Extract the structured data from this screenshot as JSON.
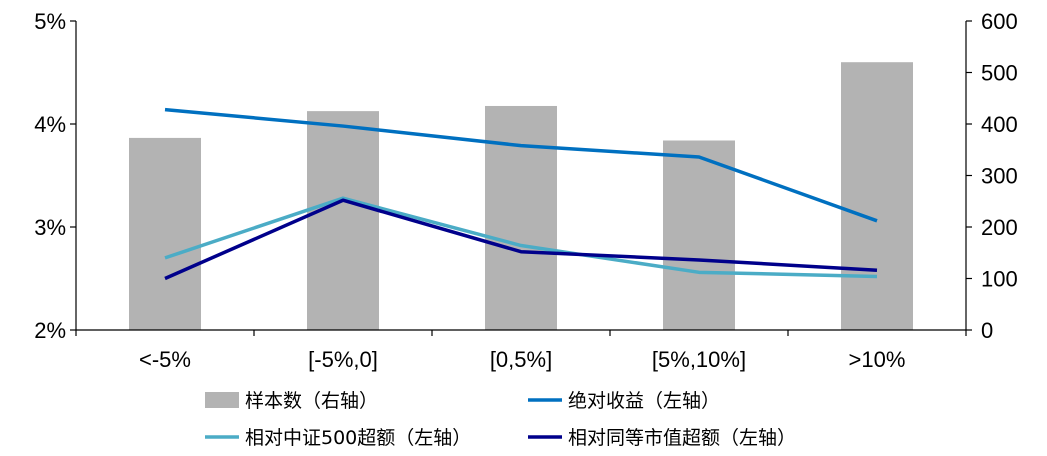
{
  "chart_data": {
    "type": "bar",
    "categories": [
      "<-5%",
      "[-5%,0]",
      "[0,5%]",
      "[5%,10%]",
      ">10%"
    ],
    "left_axis": {
      "ylim": [
        0.02,
        0.05
      ],
      "ticks": [
        "2%",
        "3%",
        "4%",
        "5%"
      ]
    },
    "right_axis": {
      "ylim": [
        0,
        600
      ],
      "ticks": [
        "0",
        "100",
        "200",
        "300",
        "400",
        "500",
        "600"
      ]
    },
    "series": [
      {
        "name": "样本数（右轴）",
        "type": "bar",
        "axis": "right",
        "color": "#b3b3b3",
        "values": [
          373,
          425,
          435,
          368,
          520
        ]
      },
      {
        "name": "绝对收益（左轴）",
        "type": "line",
        "axis": "left",
        "color": "#0070c0",
        "values": [
          0.0414,
          0.0398,
          0.0379,
          0.0368,
          0.0306
        ]
      },
      {
        "name": "相对中证500超额（左轴）",
        "type": "line",
        "axis": "left",
        "color": "#4bacc6",
        "values": [
          0.027,
          0.0328,
          0.0282,
          0.0256,
          0.0252
        ]
      },
      {
        "name": "相对同等市值超额（左轴）",
        "type": "line",
        "axis": "left",
        "color": "#00008b",
        "values": [
          0.025,
          0.0326,
          0.0276,
          0.0268,
          0.0258
        ]
      }
    ],
    "grid": false,
    "legend_position": "bottom"
  }
}
